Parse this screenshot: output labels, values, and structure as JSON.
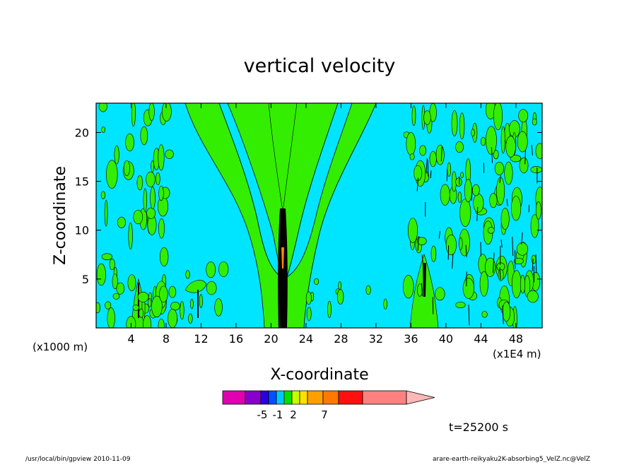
{
  "chart_data": {
    "type": "heatmap",
    "title": "vertical velocity",
    "xlabel": "X-coordinate",
    "ylabel": "Z-coordinate",
    "x_unit_left": "(x1000 m)",
    "x_unit_right": "(x1E4 m)",
    "xlim": [
      0,
      51
    ],
    "ylim": [
      0,
      23
    ],
    "x_ticks": [
      4,
      8,
      12,
      16,
      20,
      24,
      28,
      32,
      36,
      40,
      44,
      48
    ],
    "y_ticks": [
      5,
      10,
      15,
      20
    ],
    "colorbar": {
      "colors": [
        "#e000b0",
        "#8800cc",
        "#2a00e0",
        "#0050ff",
        "#00c8ff",
        "#00e000",
        "#c8ff00",
        "#ffe000",
        "#ffa000",
        "#ff7800",
        "#ff1010",
        "#ff8080",
        "#ffb8b8"
      ],
      "tick_labels": [
        "-5",
        "-1",
        "2",
        "7"
      ],
      "tick_index": [
        2,
        4,
        6,
        9
      ]
    },
    "field_colors": {
      "background": "#00e5ff",
      "updraft": "#33ee00",
      "strong": "#ff8800"
    },
    "time_label": "t=25200 s",
    "footer_left": "/usr/local/bin/gpview  2010-11-09",
    "footer_right": "arare-earth-reikyaku2K-absorbing5_VelZ.nc@VelZ"
  }
}
